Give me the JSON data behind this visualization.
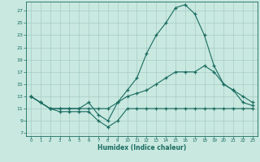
{
  "xlabel": "Humidex (Indice chaleur)",
  "xlim": [
    -0.5,
    23.5
  ],
  "ylim": [
    6.5,
    28.5
  ],
  "yticks": [
    7,
    9,
    11,
    13,
    15,
    17,
    19,
    21,
    23,
    25,
    27
  ],
  "xticks": [
    0,
    1,
    2,
    3,
    4,
    5,
    6,
    7,
    8,
    9,
    10,
    11,
    12,
    13,
    14,
    15,
    16,
    17,
    18,
    19,
    20,
    21,
    22,
    23
  ],
  "background_color": "#c8e8e0",
  "grid_color": "#a8ccc4",
  "line_color": "#1a6b60",
  "line1_x": [
    0,
    1,
    2,
    3,
    4,
    5,
    6,
    7,
    8,
    9,
    10,
    11,
    12,
    13,
    14,
    15,
    16,
    17,
    18,
    19,
    20,
    21,
    22,
    23
  ],
  "line1_y": [
    13,
    12,
    11,
    10.5,
    10.5,
    10.5,
    10.5,
    9,
    8,
    9,
    11,
    11,
    11,
    11,
    11,
    11,
    11,
    11,
    11,
    11,
    11,
    11,
    11,
    11
  ],
  "line2_x": [
    0,
    1,
    2,
    3,
    4,
    5,
    6,
    7,
    8,
    9,
    10,
    11,
    12,
    13,
    14,
    15,
    16,
    17,
    18,
    19,
    20,
    21,
    22,
    23
  ],
  "line2_y": [
    13,
    12,
    11,
    11,
    11,
    11,
    11,
    11,
    11,
    12,
    13,
    13.5,
    14,
    15,
    16,
    17,
    17,
    17,
    18,
    17,
    15,
    14,
    13,
    12
  ],
  "line3_x": [
    0,
    1,
    2,
    3,
    4,
    5,
    6,
    7,
    8,
    9,
    10,
    11,
    12,
    13,
    14,
    15,
    16,
    17,
    18,
    19,
    20,
    21,
    22,
    23
  ],
  "line3_y": [
    13,
    12,
    11,
    11,
    11,
    11,
    12,
    10,
    9,
    12,
    14,
    16,
    20,
    23,
    25,
    27.5,
    28,
    26.5,
    23,
    18,
    15,
    14,
    12,
    11.5
  ]
}
